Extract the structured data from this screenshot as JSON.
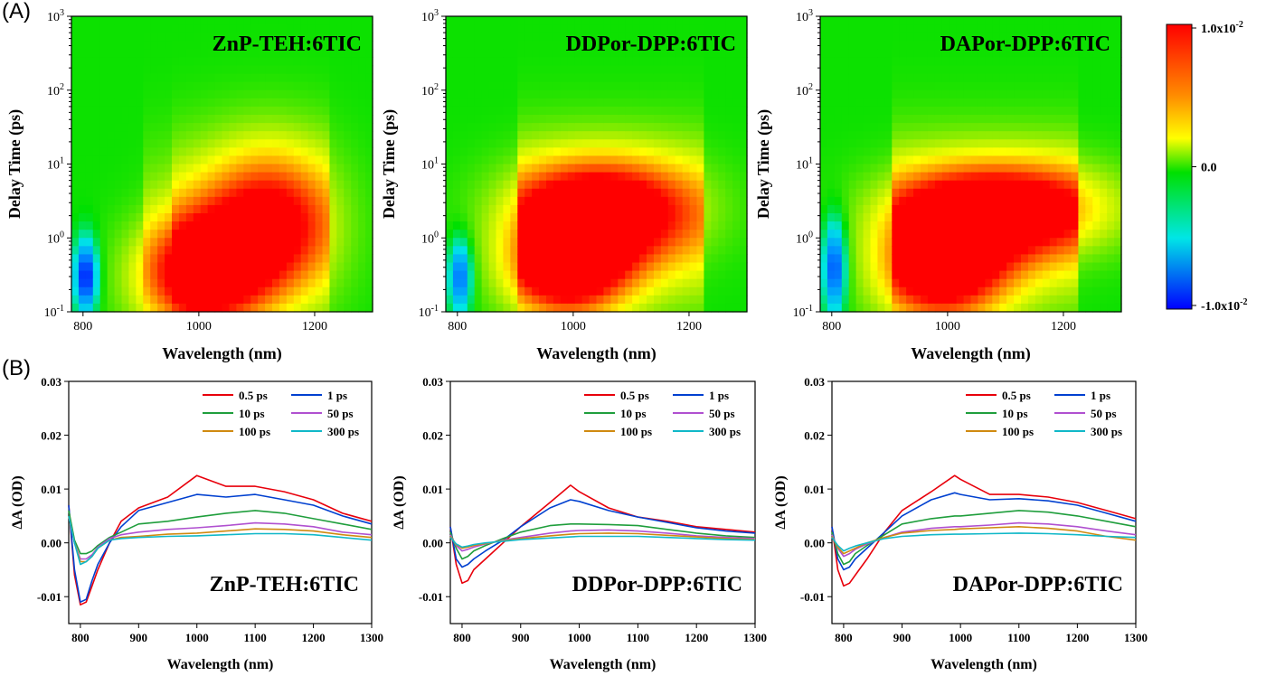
{
  "figure": {
    "panel_a": "(A)",
    "panel_b": "(B)",
    "colorbar_ticks": [
      "1.0x10",
      "0.0",
      "-1.0x10"
    ],
    "colorbar_exponent": "-2",
    "colorbar_colors": [
      "#ff0000",
      "#ff8c00",
      "#ffff00",
      "#00e000",
      "#00e6e6",
      "#0000ff"
    ]
  },
  "chart_data": [
    {
      "type": "heatmap",
      "title": "ZnP-TEH:6TIC",
      "xlabel": "Wavelength (nm)",
      "ylabel": "Delay Time (ps)",
      "xlim": [
        780,
        1300
      ],
      "ylim": [
        0.1,
        1000
      ],
      "yscale": "log",
      "xticks": [
        "800",
        "1000",
        "1200"
      ],
      "yticks": [
        {
          "base": "10",
          "exp": "-1"
        },
        {
          "base": "10",
          "exp": "0"
        },
        {
          "base": "10",
          "exp": "1"
        },
        {
          "base": "10",
          "exp": "2"
        },
        {
          "base": "10",
          "exp": "3"
        }
      ],
      "zlim": [
        -0.01,
        0.01
      ],
      "features": [
        {
          "kind": "bleach",
          "x": 805,
          "y": 0.3,
          "value": -0.01
        },
        {
          "kind": "absorption",
          "x": 1000,
          "y": 0.3,
          "value": 0.011
        },
        {
          "kind": "absorption",
          "x": 1120,
          "y": 1.5,
          "value": 0.008
        }
      ]
    },
    {
      "type": "heatmap",
      "title": "DDPor-DPP:6TIC",
      "xlabel": "Wavelength (nm)",
      "ylabel": "Delay Time (ps)",
      "xlim": [
        780,
        1300
      ],
      "ylim": [
        0.1,
        1000
      ],
      "yscale": "log",
      "xticks": [
        "800",
        "1000",
        "1200"
      ],
      "yticks": [
        {
          "base": "10",
          "exp": "-1"
        },
        {
          "base": "10",
          "exp": "0"
        },
        {
          "base": "10",
          "exp": "1"
        },
        {
          "base": "10",
          "exp": "2"
        },
        {
          "base": "10",
          "exp": "3"
        }
      ],
      "zlim": [
        -0.01,
        0.01
      ],
      "features": [
        {
          "kind": "bleach",
          "x": 805,
          "y": 0.3,
          "value": -0.008
        },
        {
          "kind": "absorption",
          "x": 990,
          "y": 0.4,
          "value": 0.011
        },
        {
          "kind": "absorption",
          "x": 1050,
          "y": 2.5,
          "value": 0.009
        }
      ]
    },
    {
      "type": "heatmap",
      "title": "DAPor-DPP:6TIC",
      "xlabel": "Wavelength (nm)",
      "ylabel": "Delay Time (ps)",
      "xlim": [
        780,
        1300
      ],
      "ylim": [
        0.1,
        1000
      ],
      "yscale": "log",
      "xticks": [
        "800",
        "1000",
        "1200"
      ],
      "yticks": [
        {
          "base": "10",
          "exp": "-1"
        },
        {
          "base": "10",
          "exp": "0"
        },
        {
          "base": "10",
          "exp": "1"
        },
        {
          "base": "10",
          "exp": "2"
        },
        {
          "base": "10",
          "exp": "3"
        }
      ],
      "zlim": [
        -0.01,
        0.01
      ],
      "features": [
        {
          "kind": "bleach",
          "x": 805,
          "y": 0.4,
          "value": -0.009
        },
        {
          "kind": "absorption",
          "x": 990,
          "y": 0.4,
          "value": 0.011
        },
        {
          "kind": "absorption",
          "x": 1100,
          "y": 2.5,
          "value": 0.009
        }
      ]
    },
    {
      "type": "line",
      "title": "ZnP-TEH:6TIC",
      "xlabel": "Wavelength (nm)",
      "ylabel": "ΔA (OD)",
      "xlim": [
        780,
        1300
      ],
      "ylim": [
        -0.015,
        0.03
      ],
      "xticks": [
        "800",
        "900",
        "1000",
        "1100",
        "1200",
        "1300"
      ],
      "yticks": [
        "0.03",
        "0.02",
        "0.01",
        "0.00",
        "-0.01"
      ],
      "x": [
        780,
        790,
        800,
        810,
        820,
        830,
        850,
        870,
        900,
        950,
        1000,
        1050,
        1100,
        1150,
        1200,
        1250,
        1300
      ],
      "series": [
        {
          "name": "0.5 ps",
          "color": "#e8000b",
          "values": [
            0.007,
            -0.006,
            -0.0115,
            -0.011,
            -0.008,
            -0.005,
            0.0,
            0.004,
            0.0065,
            0.0085,
            0.0125,
            0.0105,
            0.0105,
            0.0095,
            0.008,
            0.0055,
            0.004
          ]
        },
        {
          "name": "1 ps",
          "color": "#0040d0",
          "values": [
            0.007,
            -0.005,
            -0.011,
            -0.0105,
            -0.007,
            -0.004,
            0.0,
            0.003,
            0.006,
            0.0075,
            0.009,
            0.0085,
            0.009,
            0.008,
            0.007,
            0.005,
            0.0035
          ]
        },
        {
          "name": "10 ps",
          "color": "#1f9e3c",
          "values": [
            0.006,
            0.0005,
            -0.002,
            -0.002,
            -0.0015,
            -0.0005,
            0.001,
            0.002,
            0.0035,
            0.004,
            0.0048,
            0.0055,
            0.006,
            0.0055,
            0.0045,
            0.0035,
            0.0025
          ]
        },
        {
          "name": "50 ps",
          "color": "#b050d0",
          "values": [
            0.005,
            0.0,
            -0.003,
            -0.003,
            -0.0022,
            -0.0008,
            0.0008,
            0.0015,
            0.002,
            0.0025,
            0.0028,
            0.0032,
            0.0037,
            0.0035,
            0.003,
            0.002,
            0.0015
          ]
        },
        {
          "name": "100 ps",
          "color": "#d08a10",
          "values": [
            0.005,
            0.0,
            -0.0035,
            -0.0035,
            -0.0025,
            -0.001,
            0.0005,
            0.001,
            0.0012,
            0.0016,
            0.0018,
            0.0022,
            0.0026,
            0.0025,
            0.0022,
            0.0015,
            0.001
          ]
        },
        {
          "name": "300 ps",
          "color": "#10b8c8",
          "values": [
            0.005,
            0.0,
            -0.004,
            -0.0035,
            -0.0025,
            -0.001,
            0.0005,
            0.0008,
            0.001,
            0.0012,
            0.0013,
            0.0015,
            0.0017,
            0.0017,
            0.0015,
            0.001,
            0.0005
          ]
        }
      ],
      "legend": "top-right"
    },
    {
      "type": "line",
      "title": "DDPor-DPP:6TIC",
      "xlabel": "Wavelength (nm)",
      "ylabel": "ΔA (OD)",
      "xlim": [
        780,
        1300
      ],
      "ylim": [
        -0.015,
        0.03
      ],
      "xticks": [
        "800",
        "900",
        "1000",
        "1100",
        "1200",
        "1300"
      ],
      "yticks": [
        "0.03",
        "0.02",
        "0.01",
        "0.00",
        "-0.01"
      ],
      "x": [
        780,
        790,
        800,
        810,
        820,
        840,
        870,
        900,
        950,
        985,
        1000,
        1050,
        1100,
        1150,
        1200,
        1250,
        1300
      ],
      "series": [
        {
          "name": "0.5 ps",
          "color": "#e8000b",
          "values": [
            0.003,
            -0.004,
            -0.0075,
            -0.007,
            -0.005,
            -0.003,
            0.0,
            0.003,
            0.0075,
            0.0107,
            0.0095,
            0.0065,
            0.0048,
            0.004,
            0.003,
            0.0025,
            0.002
          ]
        },
        {
          "name": "1 ps",
          "color": "#0040d0",
          "values": [
            0.003,
            -0.003,
            -0.0045,
            -0.004,
            -0.003,
            -0.0015,
            0.0005,
            0.003,
            0.0065,
            0.008,
            0.0077,
            0.006,
            0.0048,
            0.0038,
            0.0028,
            0.0022,
            0.0018
          ]
        },
        {
          "name": "10 ps",
          "color": "#1f9e3c",
          "values": [
            0.002,
            -0.001,
            -0.003,
            -0.0025,
            -0.0015,
            -0.0005,
            0.0008,
            0.002,
            0.0032,
            0.0035,
            0.0035,
            0.0034,
            0.0032,
            0.0025,
            0.0018,
            0.0013,
            0.001
          ]
        },
        {
          "name": "50 ps",
          "color": "#b050d0",
          "values": [
            0.0015,
            -0.0005,
            -0.0015,
            -0.0012,
            -0.0008,
            -0.0002,
            0.0005,
            0.001,
            0.0018,
            0.0022,
            0.0023,
            0.0024,
            0.0022,
            0.0018,
            0.0013,
            0.001,
            0.0008
          ]
        },
        {
          "name": "100 ps",
          "color": "#d08a10",
          "values": [
            0.0012,
            -0.0003,
            -0.001,
            -0.0008,
            -0.0005,
            -0.0001,
            0.0004,
            0.0008,
            0.0013,
            0.0016,
            0.0017,
            0.0018,
            0.0017,
            0.0014,
            0.0011,
            0.0008,
            0.0006
          ]
        },
        {
          "name": "300 ps",
          "color": "#10b8c8",
          "values": [
            0.001,
            -0.0002,
            -0.0008,
            -0.0006,
            -0.0003,
            0.0,
            0.0003,
            0.0006,
            0.0009,
            0.0011,
            0.0012,
            0.0012,
            0.0012,
            0.001,
            0.0008,
            0.0006,
            0.0005
          ]
        }
      ],
      "legend": "top-right"
    },
    {
      "type": "line",
      "title": "DAPor-DPP:6TIC",
      "xlabel": "Wavelength (nm)",
      "ylabel": "ΔA (OD)",
      "xlim": [
        780,
        1300
      ],
      "ylim": [
        -0.015,
        0.03
      ],
      "xticks": [
        "800",
        "900",
        "1000",
        "1100",
        "1200",
        "1300"
      ],
      "yticks": [
        "0.03",
        "0.02",
        "0.01",
        "0.00",
        "-0.01"
      ],
      "x": [
        780,
        790,
        800,
        810,
        820,
        840,
        870,
        900,
        950,
        990,
        1000,
        1050,
        1100,
        1150,
        1200,
        1250,
        1300
      ],
      "series": [
        {
          "name": "0.5 ps",
          "color": "#e8000b",
          "values": [
            0.003,
            -0.005,
            -0.008,
            -0.0075,
            -0.006,
            -0.003,
            0.002,
            0.006,
            0.0095,
            0.0125,
            0.0118,
            0.009,
            0.009,
            0.0085,
            0.0075,
            0.006,
            0.0045
          ]
        },
        {
          "name": "1 ps",
          "color": "#0040d0",
          "values": [
            0.003,
            -0.003,
            -0.005,
            -0.0045,
            -0.003,
            -0.001,
            0.002,
            0.005,
            0.008,
            0.0093,
            0.009,
            0.008,
            0.0082,
            0.0078,
            0.007,
            0.0055,
            0.004
          ]
        },
        {
          "name": "10 ps",
          "color": "#1f9e3c",
          "values": [
            0.002,
            -0.002,
            -0.004,
            -0.0035,
            -0.002,
            -0.0005,
            0.0015,
            0.0035,
            0.0045,
            0.005,
            0.005,
            0.0055,
            0.006,
            0.0057,
            0.005,
            0.004,
            0.003
          ]
        },
        {
          "name": "50 ps",
          "color": "#b050d0",
          "values": [
            0.0015,
            -0.001,
            -0.0025,
            -0.002,
            -0.0012,
            -0.0002,
            0.001,
            0.002,
            0.0027,
            0.003,
            0.003,
            0.0033,
            0.0037,
            0.0035,
            0.003,
            0.0022,
            0.0015
          ]
        },
        {
          "name": "100 ps",
          "color": "#d08a10",
          "values": [
            0.0012,
            -0.0008,
            -0.002,
            -0.0015,
            -0.001,
            0.0,
            0.001,
            0.0018,
            0.0023,
            0.0025,
            0.0026,
            0.0028,
            0.003,
            0.0027,
            0.0022,
            0.0012,
            0.0005
          ]
        },
        {
          "name": "300 ps",
          "color": "#10b8c8",
          "values": [
            0.001,
            -0.0005,
            -0.0015,
            -0.001,
            -0.0006,
            0.0,
            0.0008,
            0.0012,
            0.0015,
            0.0016,
            0.0016,
            0.0017,
            0.0018,
            0.0017,
            0.0015,
            0.0012,
            0.001
          ]
        }
      ],
      "legend": "top-right"
    }
  ]
}
